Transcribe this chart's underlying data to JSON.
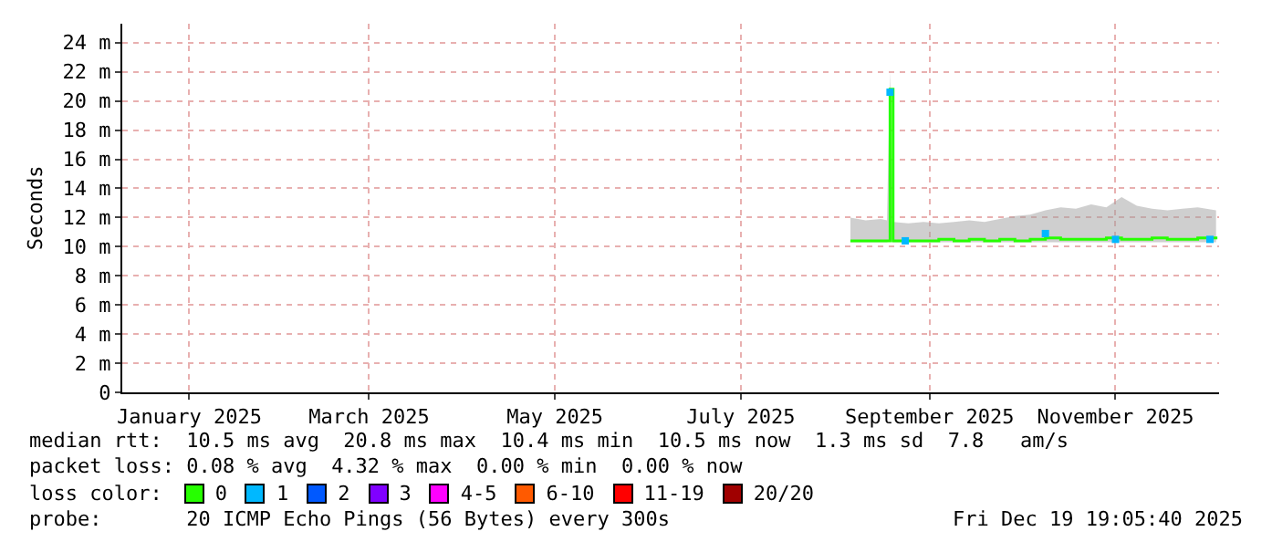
{
  "chart_data": {
    "type": "line",
    "ylabel": "Seconds",
    "legend_title": "loss color:",
    "xlim": [
      "2024-12-25",
      "2025-12-20"
    ],
    "xticks": [
      {
        "value": "2025-01-16",
        "label": "January 2025"
      },
      {
        "value": "2025-03-16",
        "label": "March 2025"
      },
      {
        "value": "2025-05-16",
        "label": "May 2025"
      },
      {
        "value": "2025-07-16",
        "label": "July 2025"
      },
      {
        "value": "2025-09-16",
        "label": "September 2025"
      },
      {
        "value": "2025-11-16",
        "label": "November 2025"
      }
    ],
    "ylim": [
      0,
      25.3
    ],
    "yticks": [
      0,
      {
        "value": 2,
        "label": "2 m"
      },
      {
        "value": 4,
        "label": "4 m"
      },
      {
        "value": 6,
        "label": "6 m"
      },
      {
        "value": 8,
        "label": "8 m"
      },
      {
        "value": 10,
        "label": "10 m"
      },
      {
        "value": 12,
        "label": "12 m"
      },
      {
        "value": 14,
        "label": "14 m"
      },
      {
        "value": 16,
        "label": "16 m"
      },
      {
        "value": 18,
        "label": "18 m"
      },
      {
        "value": 20,
        "label": "20 m"
      },
      {
        "value": 22,
        "label": "22 m"
      },
      {
        "value": 24,
        "label": "24 m"
      }
    ],
    "grid": true,
    "legend": "bottom",
    "series": [
      {
        "name": "0",
        "color": "#26ff00",
        "x": [
          "2025-08-21",
          "2025-08-26",
          "2025-08-31",
          "2025-09-02",
          "2025-09-03",
          "2025-09-04",
          "2025-09-09",
          "2025-09-14",
          "2025-09-19",
          "2025-09-24",
          "2025-09-29",
          "2025-10-04",
          "2025-10-09",
          "2025-10-14",
          "2025-10-19",
          "2025-10-24",
          "2025-10-29",
          "2025-11-03",
          "2025-11-08",
          "2025-11-13",
          "2025-11-18",
          "2025-11-23",
          "2025-11-28",
          "2025-12-03",
          "2025-12-08",
          "2025-12-13",
          "2025-12-19"
        ],
        "values": [
          10.4,
          10.4,
          10.4,
          10.4,
          20.8,
          10.4,
          10.4,
          10.4,
          10.5,
          10.4,
          10.5,
          10.4,
          10.5,
          10.4,
          10.5,
          10.6,
          10.5,
          10.5,
          10.5,
          10.6,
          10.5,
          10.5,
          10.6,
          10.5,
          10.5,
          10.6,
          10.5
        ],
        "lower": [
          10.3,
          10.3,
          10.3,
          10.3,
          10.4,
          10.3,
          10.3,
          10.3,
          10.3,
          10.3,
          10.3,
          10.3,
          10.3,
          10.3,
          10.3,
          10.3,
          10.3,
          10.3,
          10.3,
          10.3,
          10.3,
          10.3,
          10.3,
          10.3,
          10.3,
          10.3,
          10.3
        ],
        "upper": [
          12.0,
          11.8,
          11.9,
          11.8,
          22.0,
          11.7,
          11.6,
          11.7,
          11.6,
          11.7,
          11.8,
          11.7,
          11.9,
          12.1,
          12.2,
          12.5,
          12.7,
          12.6,
          12.9,
          12.7,
          13.4,
          12.8,
          12.6,
          12.5,
          12.6,
          12.7,
          12.5
        ]
      },
      {
        "name": "1",
        "type": "scatter",
        "marker": "square",
        "color": "#00b8ff",
        "x": [
          "2025-09-03",
          "2025-09-08",
          "2025-10-24",
          "2025-11-16",
          "2025-12-17"
        ],
        "values": [
          20.6,
          10.4,
          10.9,
          10.5,
          10.5
        ]
      },
      {
        "name": "2",
        "type": "scatter",
        "color": "#0059ff"
      },
      {
        "name": "3",
        "type": "scatter",
        "color": "#8000ff"
      },
      {
        "name": "4-5",
        "type": "scatter",
        "color": "#ff00ff"
      },
      {
        "name": "6-10",
        "type": "scatter",
        "color": "#ff5a00"
      },
      {
        "name": "11-19",
        "type": "scatter",
        "color": "#ff0000"
      },
      {
        "name": "20/20",
        "type": "scatter",
        "color": "#a00000"
      }
    ],
    "annotations": [
      "median rtt:  10.5 ms avg  20.8 ms max  10.4 ms min  10.5 ms now  1.3 ms sd  7.8   am/s",
      "packet loss: 0.08 % avg  4.32 % max  0.00 % min  0.00 % now",
      "probe:       20 ICMP Echo Pings (56 Bytes) every 300s",
      "Fri Dec 19 19:05:40 2025"
    ]
  }
}
